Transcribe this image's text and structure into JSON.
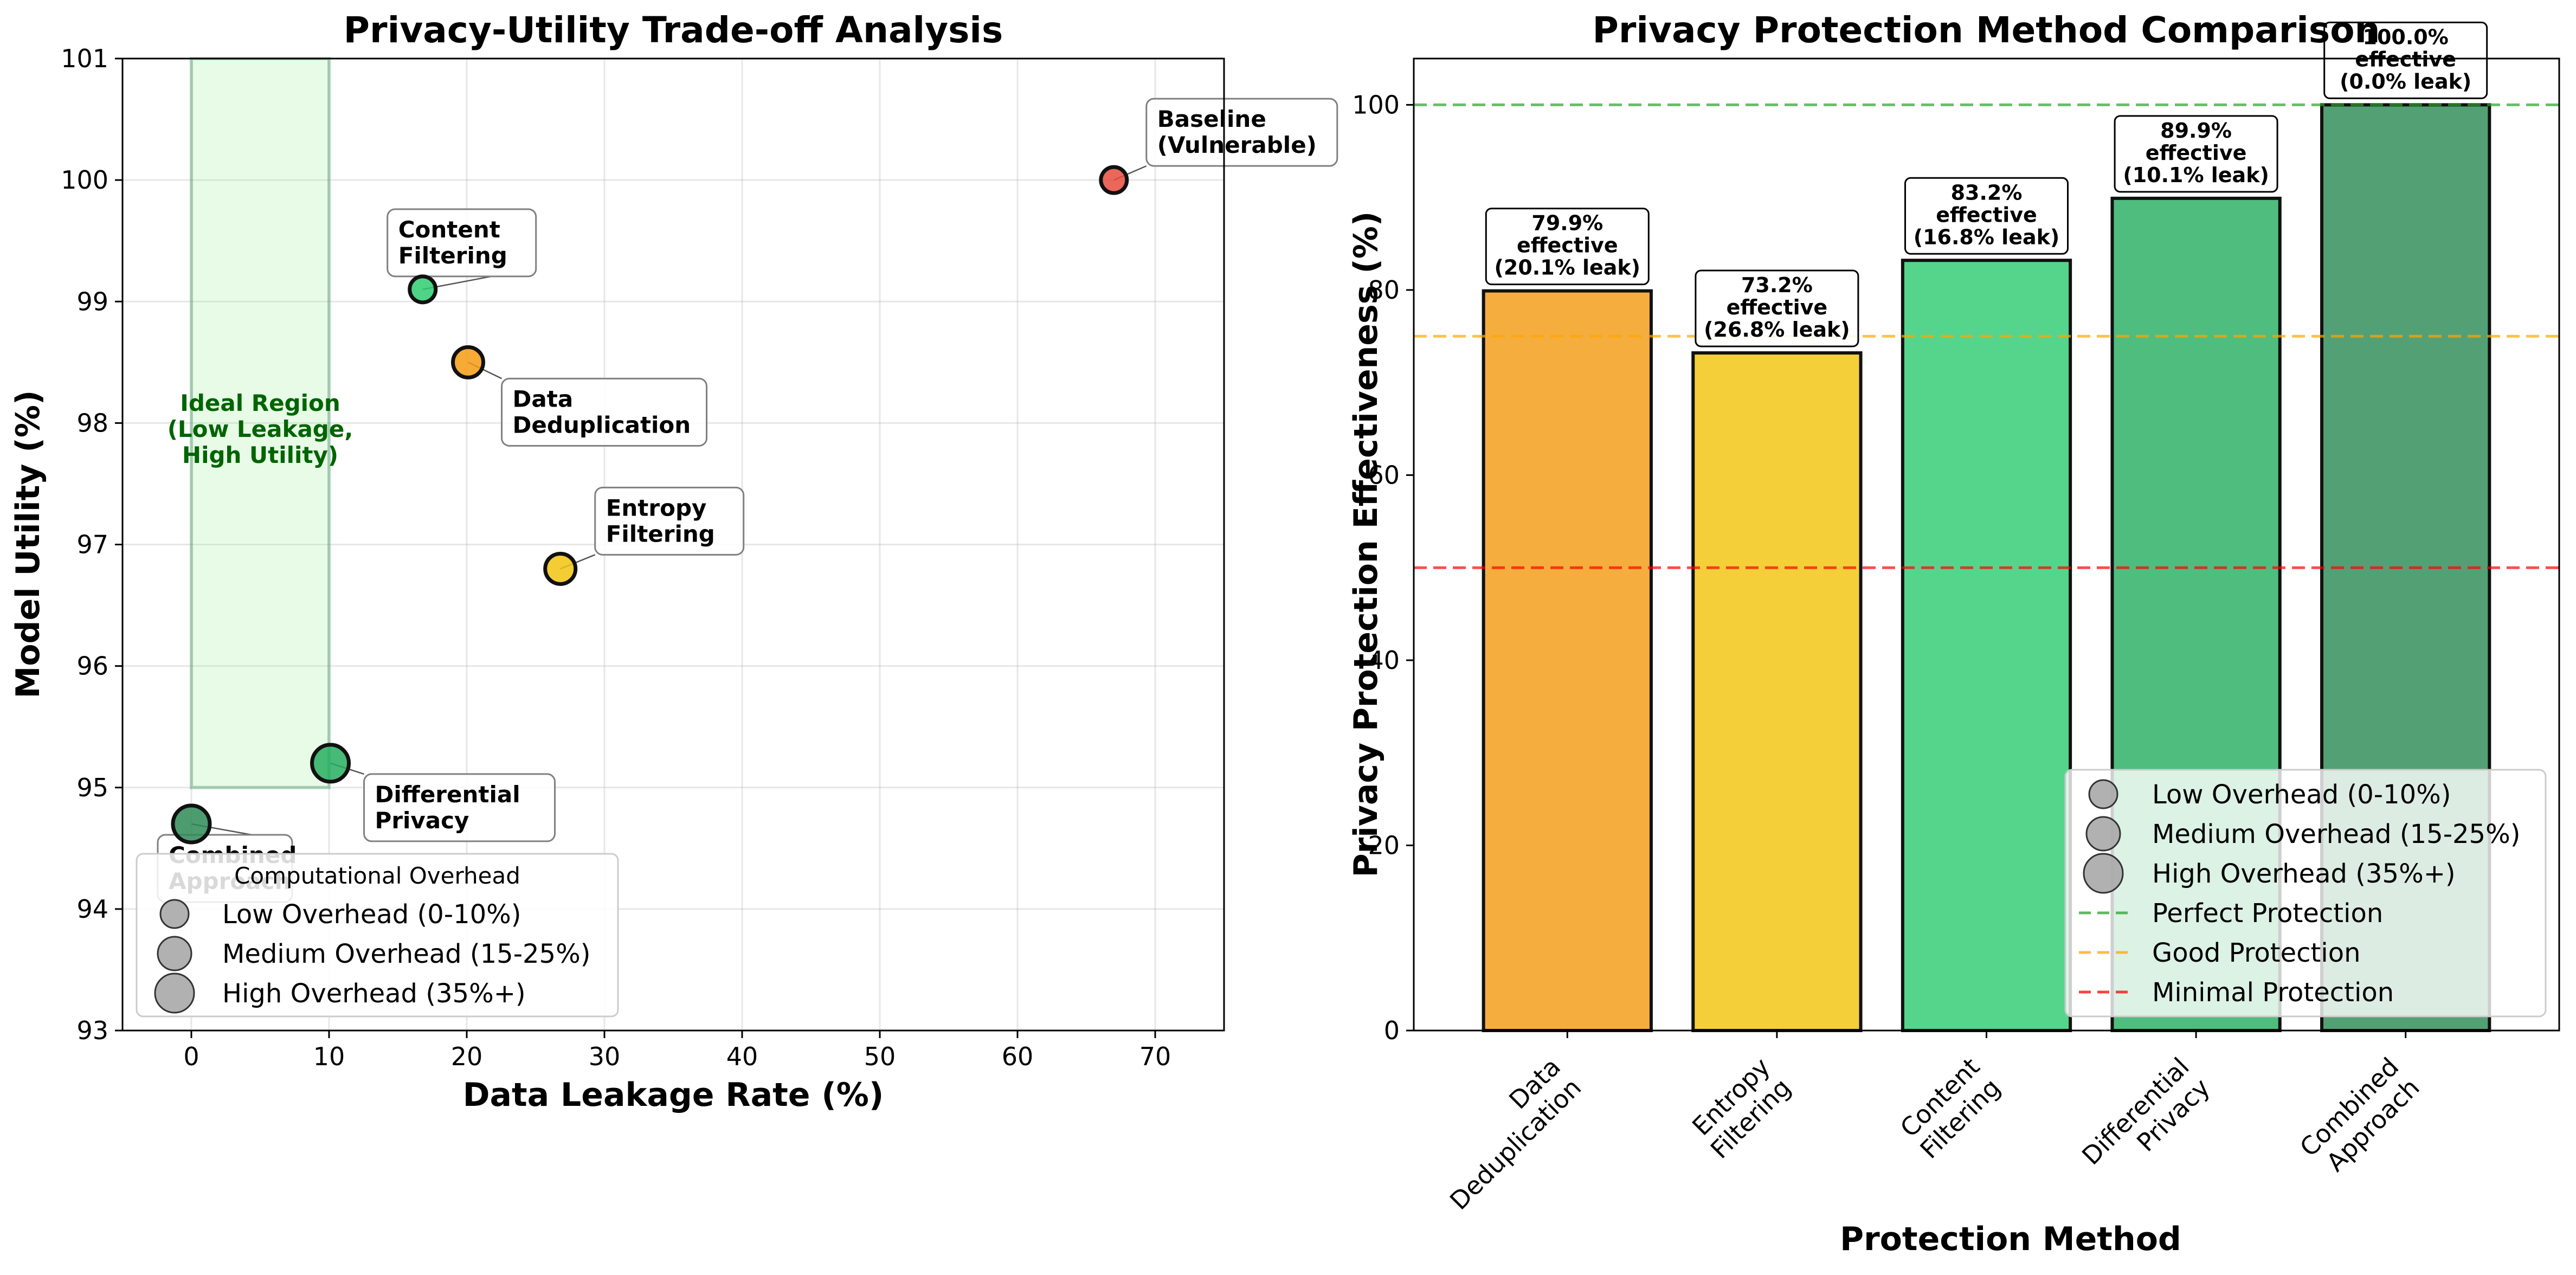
{
  "colors": {
    "green_dark": "#2e8b57",
    "green": "#2ecc71",
    "yellow": "#f1c40f",
    "orange": "#f39c12",
    "red": "#e74c3c",
    "ideal": "#90ee90",
    "ideal_text": "#006400",
    "perfect_line": "#2ca02c",
    "good_line": "#ffa500",
    "minimal_line": "#ff0000",
    "legend_marker": "#a9a9a9"
  },
  "chart_data": [
    {
      "type": "scatter",
      "title": "Privacy-Utility Trade-off Analysis",
      "xlabel": "Data Leakage Rate (%)",
      "ylabel": "Model Utility (%)",
      "xlim": [
        -5,
        75
      ],
      "ylim": [
        93,
        101
      ],
      "xticks": [
        "0",
        "10",
        "20",
        "30",
        "40",
        "50",
        "60",
        "70"
      ],
      "xtick_values": [
        0,
        10,
        20,
        30,
        40,
        50,
        60,
        70
      ],
      "yticks": [
        "93",
        "94",
        "95",
        "96",
        "97",
        "98",
        "99",
        "100",
        "101"
      ],
      "ytick_values": [
        93,
        94,
        95,
        96,
        97,
        98,
        99,
        100,
        101
      ],
      "ideal_region": {
        "x_range": [
          0,
          10
        ],
        "y_range": [
          95,
          101
        ],
        "label_lines": [
          "Ideal Region",
          "(Low Leakage,",
          "High Utility)"
        ]
      },
      "points": [
        {
          "name": "Baseline (Vulnerable)",
          "label_lines": [
            "Baseline",
            "(Vulnerable)"
          ],
          "x": 67,
          "y": 100.0,
          "overhead": "low",
          "color": "#e74c3c"
        },
        {
          "name": "Content Filtering",
          "label_lines": [
            "Content",
            "Filtering"
          ],
          "x": 16.8,
          "y": 99.1,
          "overhead": "low",
          "color": "#2ecc71"
        },
        {
          "name": "Data Deduplication",
          "label_lines": [
            "Data",
            "Deduplication"
          ],
          "x": 20.1,
          "y": 98.5,
          "overhead": "medium",
          "color": "#f39c12"
        },
        {
          "name": "Entropy Filtering",
          "label_lines": [
            "Entropy",
            "Filtering"
          ],
          "x": 26.8,
          "y": 96.8,
          "overhead": "medium",
          "color": "#f1c40f"
        },
        {
          "name": "Differential Privacy",
          "label_lines": [
            "Differential",
            "Privacy"
          ],
          "x": 10.1,
          "y": 95.2,
          "overhead": "high",
          "color": "#27ae60"
        },
        {
          "name": "Combined Approach",
          "label_lines": [
            "Combined",
            "Approach"
          ],
          "x": 0.0,
          "y": 94.7,
          "overhead": "high",
          "color": "#2e8b57"
        }
      ],
      "legend": {
        "title": "Computational Overhead",
        "position": "lower-left",
        "entries": [
          "Low Overhead (0-10%)",
          "Medium Overhead (15-25%)",
          "High Overhead (35%+)"
        ]
      }
    },
    {
      "type": "bar",
      "title": "Privacy Protection Method Comparison",
      "xlabel": "Protection Method",
      "ylabel": "Privacy Protection Effectiveness (%)",
      "ylim": [
        0,
        105
      ],
      "yticks": [
        "0",
        "20",
        "40",
        "60",
        "80",
        "100"
      ],
      "ytick_values": [
        0,
        20,
        40,
        60,
        80,
        100
      ],
      "categories": [
        "Data Deduplication",
        "Entropy Filtering",
        "Content Filtering",
        "Differential Privacy",
        "Combined Approach"
      ],
      "category_lines": [
        [
          "Data",
          "Deduplication"
        ],
        [
          "Entropy",
          "Filtering"
        ],
        [
          "Content",
          "Filtering"
        ],
        [
          "Differential",
          "Privacy"
        ],
        [
          "Combined",
          "Approach"
        ]
      ],
      "values": [
        79.9,
        73.2,
        83.2,
        89.9,
        100.0
      ],
      "bar_colors": [
        "#f39c12",
        "#f1c40f",
        "#2ecc71",
        "#27ae60",
        "#2e8b57"
      ],
      "bar_labels": [
        [
          "79.9%",
          "effective",
          "(20.1% leak)"
        ],
        [
          "73.2%",
          "effective",
          "(26.8% leak)"
        ],
        [
          "83.2%",
          "effective",
          "(16.8% leak)"
        ],
        [
          "89.9%",
          "effective",
          "(10.1% leak)"
        ],
        [
          "100.0%",
          "effective",
          "(0.0% leak)"
        ]
      ],
      "reference_lines": [
        {
          "name": "Perfect Protection",
          "y": 100,
          "color": "#2ca02c"
        },
        {
          "name": "Good Protection",
          "y": 75,
          "color": "#ffa500"
        },
        {
          "name": "Minimal Protection",
          "y": 50,
          "color": "#ff0000"
        }
      ],
      "legend": {
        "position": "lower-right",
        "entries": [
          "Low Overhead (0-10%)",
          "Medium Overhead (15-25%)",
          "High Overhead (35%+)",
          "Perfect Protection",
          "Good Protection",
          "Minimal Protection"
        ]
      }
    }
  ]
}
